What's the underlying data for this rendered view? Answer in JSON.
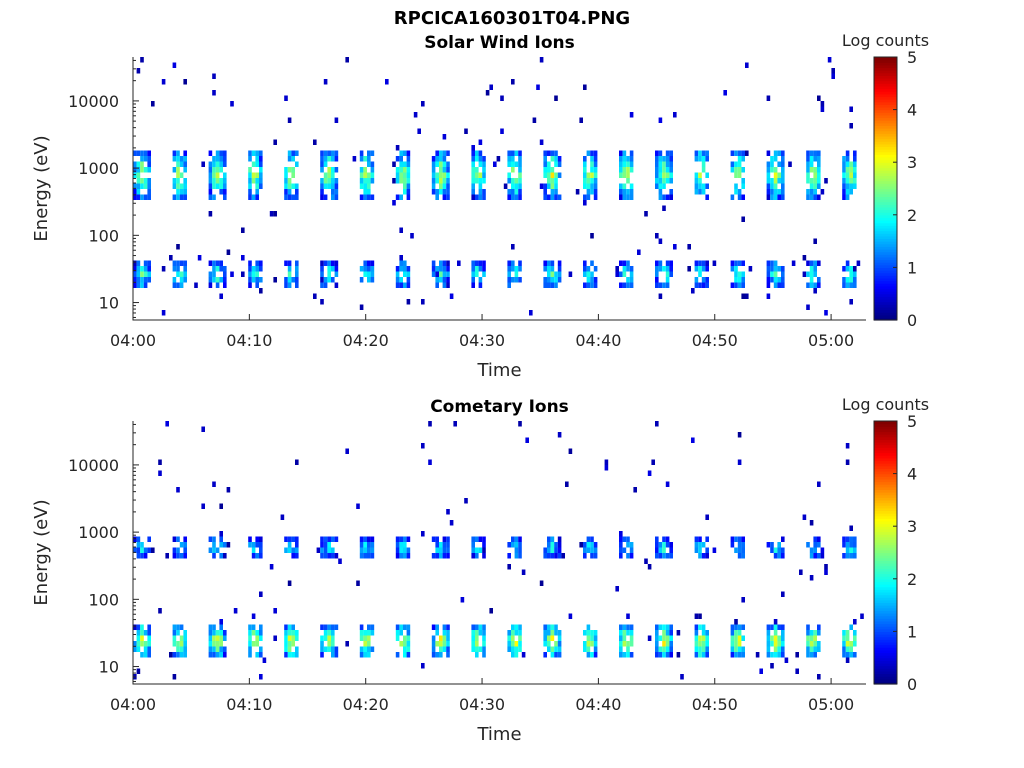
{
  "figure": {
    "title": "RPCICA160301T04.PNG"
  },
  "chart_data": [
    {
      "type": "heatmap",
      "title": "Solar Wind Ions",
      "xlabel": "Time",
      "ylabel": "Energy (eV)",
      "x_ticks": [
        "04:00",
        "04:10",
        "04:20",
        "04:30",
        "04:40",
        "04:50",
        "05:00"
      ],
      "x_range": [
        "04:00",
        "05:03"
      ],
      "y_scale": "log",
      "y_range": [
        5.5,
        45000
      ],
      "y_ticks": [
        "10",
        "100",
        "1000",
        "10000"
      ],
      "colorbar": {
        "label": "Log counts",
        "range": [
          0,
          5
        ],
        "ticks": [
          "0",
          "1",
          "2",
          "3",
          "4",
          "5"
        ],
        "colormap": "jet"
      },
      "sweep_period_minutes": 3.2,
      "bands": [
        {
          "name": "low",
          "energy_range_eV": [
            18,
            45
          ],
          "peak_log_counts": 2.3
        },
        {
          "name": "high",
          "energy_range_eV": [
            400,
            1900
          ],
          "peak_log_counts": 3.0
        }
      ]
    },
    {
      "type": "heatmap",
      "title": "Cometary Ions",
      "xlabel": "Time",
      "ylabel": "Energy (eV)",
      "x_ticks": [
        "04:00",
        "04:10",
        "04:20",
        "04:30",
        "04:40",
        "04:50",
        "05:00"
      ],
      "x_range": [
        "04:00",
        "05:03"
      ],
      "y_scale": "log",
      "y_range": [
        5.5,
        45000
      ],
      "y_ticks": [
        "10",
        "100",
        "1000",
        "10000"
      ],
      "colorbar": {
        "label": "Log counts",
        "range": [
          0,
          5
        ],
        "ticks": [
          "0",
          "1",
          "2",
          "3",
          "4",
          "5"
        ],
        "colormap": "jet"
      },
      "sweep_period_minutes": 3.2,
      "bands": [
        {
          "name": "low",
          "energy_range_eV": [
            15,
            45
          ],
          "peak_log_counts": 3.3
        },
        {
          "name": "high",
          "energy_range_eV": [
            450,
            900
          ],
          "peak_log_counts": 2.0
        }
      ]
    }
  ]
}
